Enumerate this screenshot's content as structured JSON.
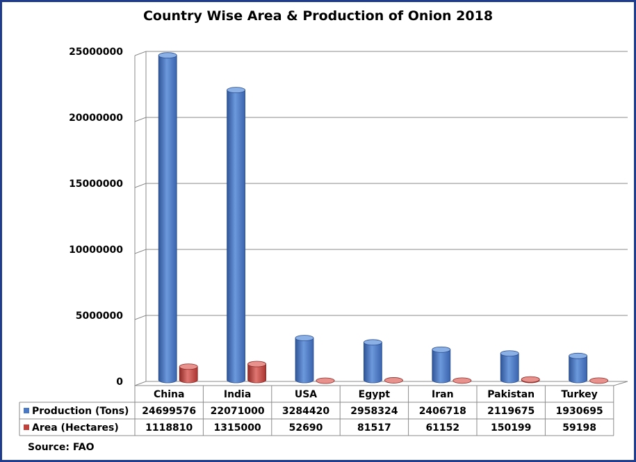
{
  "chart_data": {
    "type": "bar",
    "title": "Country Wise Area & Production of Onion 2018",
    "categories": [
      "China",
      "India",
      "USA",
      "Egypt",
      "Iran",
      "Pakistan",
      "Turkey"
    ],
    "series": [
      {
        "name": "Production (Tons)",
        "color": "#4a78c2",
        "values": [
          24699576,
          22071000,
          3284420,
          2958324,
          2406718,
          2119675,
          1930695
        ]
      },
      {
        "name": "Area (Hectares)",
        "color": "#c0403b",
        "values": [
          1118810,
          1315000,
          52690,
          81517,
          61152,
          150199,
          59198
        ]
      }
    ],
    "ylim": [
      0,
      25000000
    ],
    "yticks": [
      0,
      5000000,
      10000000,
      15000000,
      20000000,
      25000000
    ],
    "grid": true,
    "legend": "data-table",
    "shape": "3d-cylinder"
  },
  "source_text": "Source: FAO"
}
